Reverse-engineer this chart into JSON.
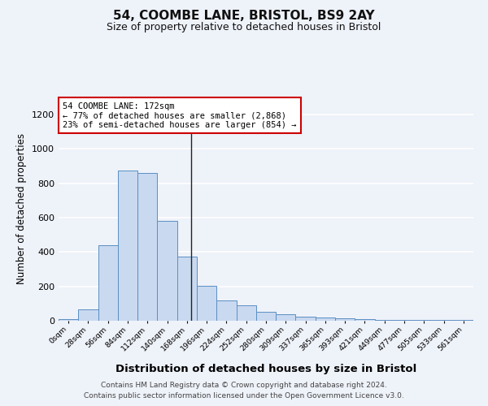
{
  "title1": "54, COOMBE LANE, BRISTOL, BS9 2AY",
  "title2": "Size of property relative to detached houses in Bristol",
  "xlabel": "Distribution of detached houses by size in Bristol",
  "ylabel": "Number of detached properties",
  "categories": [
    "0sqm",
    "28sqm",
    "56sqm",
    "84sqm",
    "112sqm",
    "140sqm",
    "168sqm",
    "196sqm",
    "224sqm",
    "252sqm",
    "280sqm",
    "309sqm",
    "337sqm",
    "365sqm",
    "393sqm",
    "421sqm",
    "449sqm",
    "477sqm",
    "505sqm",
    "533sqm",
    "561sqm"
  ],
  "values": [
    10,
    65,
    440,
    875,
    860,
    580,
    375,
    205,
    120,
    90,
    52,
    40,
    25,
    18,
    15,
    8,
    5,
    4,
    3,
    3,
    5
  ],
  "bar_color": "#c9d9f0",
  "bar_edge_color": "#5a8fc3",
  "annotation_property": "54 COOMBE LANE: 172sqm",
  "annotation_line1": "← 77% of detached houses are smaller (2,868)",
  "annotation_line2": "23% of semi-detached houses are larger (854) →",
  "annotation_box_color": "#ffffff",
  "annotation_box_edge_color": "#cc0000",
  "vline_color": "#222222",
  "property_line_index": 6.2,
  "ylim": [
    0,
    1300
  ],
  "yticks": [
    0,
    200,
    400,
    600,
    800,
    1000,
    1200
  ],
  "background_color": "#eef2f9",
  "grid_color": "#ffffff",
  "footer_line1": "Contains HM Land Registry data © Crown copyright and database right 2024.",
  "footer_line2": "Contains public sector information licensed under the Open Government Licence v3.0."
}
